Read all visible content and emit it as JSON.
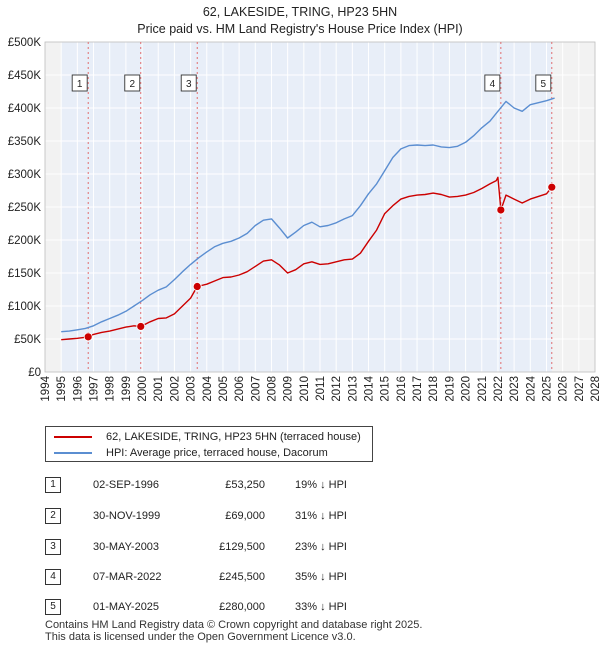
{
  "chart_data": {
    "type": "line",
    "title": "62, LAKESIDE, TRING, HP23 5HN",
    "subtitle": "Price paid vs. HM Land Registry's House Price Index (HPI)",
    "xlabel": "",
    "ylabel": "",
    "xlim": [
      1994,
      2028
    ],
    "ylim": [
      0,
      500000
    ],
    "x_ticks": [
      "1994",
      "1995",
      "1996",
      "1997",
      "1998",
      "1999",
      "2000",
      "2001",
      "2002",
      "2003",
      "2004",
      "2005",
      "2006",
      "2007",
      "2008",
      "2009",
      "2010",
      "2011",
      "2012",
      "2013",
      "2014",
      "2015",
      "2016",
      "2017",
      "2018",
      "2019",
      "2020",
      "2021",
      "2022",
      "2023",
      "2024",
      "2025",
      "2026",
      "2027",
      "2028"
    ],
    "y_ticks": [
      {
        "value": 0,
        "label": "£0"
      },
      {
        "value": 50000,
        "label": "£50K"
      },
      {
        "value": 100000,
        "label": "£100K"
      },
      {
        "value": 150000,
        "label": "£150K"
      },
      {
        "value": 200000,
        "label": "£200K"
      },
      {
        "value": 250000,
        "label": "£250K"
      },
      {
        "value": 300000,
        "label": "£300K"
      },
      {
        "value": 350000,
        "label": "£350K"
      },
      {
        "value": 400000,
        "label": "£400K"
      },
      {
        "value": 450000,
        "label": "£450K"
      },
      {
        "value": 500000,
        "label": "£500K"
      }
    ],
    "grid": true,
    "shaded_ranges": [
      [
        1994.0,
        1995.0
      ],
      [
        2025.33,
        2028.0
      ]
    ],
    "series": [
      {
        "name": "62, LAKESIDE, TRING, HP23 5HN (terraced house)",
        "color": "#cc0000",
        "x": [
          1995.0,
          1995.5,
          1996.0,
          1996.67,
          1997.0,
          1997.5,
          1998.0,
          1998.5,
          1999.0,
          1999.5,
          1999.92,
          2000.5,
          2001.0,
          2001.5,
          2002.0,
          2002.5,
          2003.0,
          2003.41,
          2004.0,
          2004.5,
          2005.0,
          2005.5,
          2006.0,
          2006.5,
          2007.0,
          2007.5,
          2008.0,
          2008.5,
          2009.0,
          2009.5,
          2010.0,
          2010.5,
          2011.0,
          2011.5,
          2012.0,
          2012.5,
          2013.0,
          2013.5,
          2014.0,
          2014.5,
          2015.0,
          2015.5,
          2016.0,
          2016.5,
          2017.0,
          2017.5,
          2018.0,
          2018.5,
          2019.0,
          2019.5,
          2020.0,
          2020.5,
          2021.0,
          2021.5,
          2021.9,
          2022.0,
          2022.18,
          2022.5,
          2023.0,
          2023.5,
          2024.0,
          2024.5,
          2025.0,
          2025.33
        ],
        "values": [
          49000,
          50000,
          51000,
          53250,
          57000,
          60000,
          62000,
          65000,
          68000,
          70000,
          69000,
          76000,
          81000,
          82000,
          88000,
          100000,
          112000,
          129500,
          133000,
          138000,
          143000,
          144000,
          147000,
          152000,
          160000,
          168000,
          170000,
          162000,
          150000,
          155000,
          164000,
          167000,
          163000,
          164000,
          167000,
          170000,
          171000,
          180000,
          198000,
          215000,
          240000,
          252000,
          262000,
          266000,
          268000,
          269000,
          271000,
          269000,
          265000,
          266000,
          268000,
          272000,
          278000,
          285000,
          290000,
          295000,
          245500,
          268000,
          262000,
          256000,
          262000,
          266000,
          270000,
          280000
        ]
      },
      {
        "name": "HPI: Average price, terraced house, Dacorum",
        "color": "#5b8ed1",
        "x": [
          1995.0,
          1995.5,
          1996.0,
          1996.5,
          1997.0,
          1997.5,
          1998.0,
          1998.5,
          1999.0,
          1999.5,
          2000.0,
          2000.5,
          2001.0,
          2001.5,
          2002.0,
          2002.5,
          2003.0,
          2003.5,
          2004.0,
          2004.5,
          2005.0,
          2005.5,
          2006.0,
          2006.5,
          2007.0,
          2007.5,
          2008.0,
          2008.5,
          2009.0,
          2009.5,
          2010.0,
          2010.5,
          2011.0,
          2011.5,
          2012.0,
          2012.5,
          2013.0,
          2013.5,
          2014.0,
          2014.5,
          2015.0,
          2015.5,
          2016.0,
          2016.5,
          2017.0,
          2017.5,
          2018.0,
          2018.5,
          2019.0,
          2019.5,
          2020.0,
          2020.5,
          2021.0,
          2021.5,
          2022.0,
          2022.5,
          2023.0,
          2023.5,
          2024.0,
          2024.5,
          2025.0,
          2025.5
        ],
        "values": [
          61000,
          62000,
          64000,
          66000,
          70000,
          76000,
          81000,
          86000,
          92000,
          100000,
          108000,
          117000,
          124000,
          129000,
          140000,
          152000,
          163000,
          173000,
          182000,
          190000,
          195000,
          198000,
          203000,
          210000,
          222000,
          230000,
          232000,
          218000,
          203000,
          212000,
          222000,
          227000,
          220000,
          222000,
          226000,
          232000,
          237000,
          252000,
          270000,
          285000,
          305000,
          325000,
          338000,
          343000,
          344000,
          343000,
          344000,
          341000,
          340000,
          342000,
          348000,
          358000,
          370000,
          380000,
          395000,
          410000,
          400000,
          395000,
          405000,
          408000,
          411000,
          415000
        ]
      }
    ],
    "transactions": [
      {
        "id": "1",
        "x": 1996.67,
        "value": 53250,
        "date": "02-SEP-1996",
        "price": "£53,250",
        "hpi": "19% ↓ HPI"
      },
      {
        "id": "2",
        "x": 1999.92,
        "value": 69000,
        "date": "30-NOV-1999",
        "price": "£69,000",
        "hpi": "31% ↓ HPI"
      },
      {
        "id": "3",
        "x": 2003.41,
        "value": 129500,
        "date": "30-MAY-2003",
        "price": "£129,500",
        "hpi": "23% ↓ HPI"
      },
      {
        "id": "4",
        "x": 2022.18,
        "value": 245500,
        "date": "07-MAR-2022",
        "price": "£245,500",
        "hpi": "35% ↓ HPI"
      },
      {
        "id": "5",
        "x": 2025.33,
        "value": 280000,
        "date": "01-MAY-2025",
        "price": "£280,000",
        "hpi": "33% ↓ HPI"
      }
    ]
  },
  "legend": {
    "property_label": "62, LAKESIDE, TRING, HP23 5HN (terraced house)",
    "hpi_label": "HPI: Average price, terraced house, Dacorum",
    "property_color": "#cc0000",
    "hpi_color": "#5b8ed1"
  },
  "table": {
    "rows": [
      {
        "id": "1",
        "date": "02-SEP-1996",
        "price": "£53,250",
        "hpi": "19% ↓ HPI"
      },
      {
        "id": "2",
        "date": "30-NOV-1999",
        "price": "£69,000",
        "hpi": "31% ↓ HPI"
      },
      {
        "id": "3",
        "date": "30-MAY-2003",
        "price": "£129,500",
        "hpi": "23% ↓ HPI"
      },
      {
        "id": "4",
        "date": "07-MAR-2022",
        "price": "£245,500",
        "hpi": "35% ↓ HPI"
      },
      {
        "id": "5",
        "date": "01-MAY-2025",
        "price": "£280,000",
        "hpi": "33% ↓ HPI"
      }
    ]
  },
  "footer": {
    "line1": "Contains HM Land Registry data © Crown copyright and database right 2025.",
    "line2": "This data is licensed under the Open Government Licence v3.0."
  },
  "colors": {
    "plot_bg": "#e8eef8",
    "shade_bg": "#f2f2f2",
    "grid": "#ffffff",
    "vline": "#e06060"
  }
}
